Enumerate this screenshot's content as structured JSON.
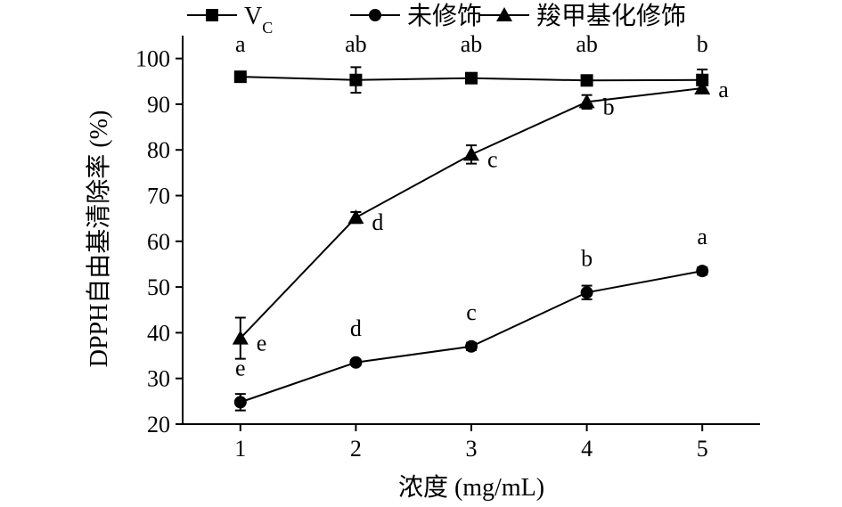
{
  "chart_data": {
    "type": "line",
    "title": "",
    "xlabel": "浓度 (mg/mL)",
    "ylabel": "DPPH自由基清除率 (%)",
    "x": [
      1,
      2,
      3,
      4,
      5
    ],
    "xlim": [
      0.5,
      5.5
    ],
    "ylim": [
      20,
      105
    ],
    "yticks": [
      20,
      30,
      40,
      50,
      60,
      70,
      80,
      90,
      100
    ],
    "legend_position": "top",
    "grid": false,
    "series": [
      {
        "name": "V",
        "name_sub": "C",
        "marker": "square",
        "values": [
          96,
          95.3,
          95.7,
          95.2,
          95.3
        ],
        "errors": [
          0.8,
          2.8,
          0.6,
          0.5,
          2.3
        ],
        "labels": [
          "a",
          "ab",
          "ab",
          "ab",
          "b"
        ]
      },
      {
        "name": "未修饰",
        "marker": "circle",
        "values": [
          24.8,
          33.5,
          37,
          48.8,
          53.5
        ],
        "errors": [
          1.8,
          0.6,
          0.8,
          1.5,
          0.8
        ],
        "labels": [
          "e",
          "d",
          "c",
          "b",
          "a"
        ]
      },
      {
        "name": "羧甲基化修饰",
        "marker": "triangle",
        "values": [
          38.8,
          65.2,
          79,
          90.5,
          93.5
        ],
        "errors": [
          4.5,
          1.2,
          2.0,
          1.5,
          1.0
        ],
        "labels": [
          "e",
          "d",
          "c",
          "b",
          "a"
        ]
      }
    ]
  }
}
